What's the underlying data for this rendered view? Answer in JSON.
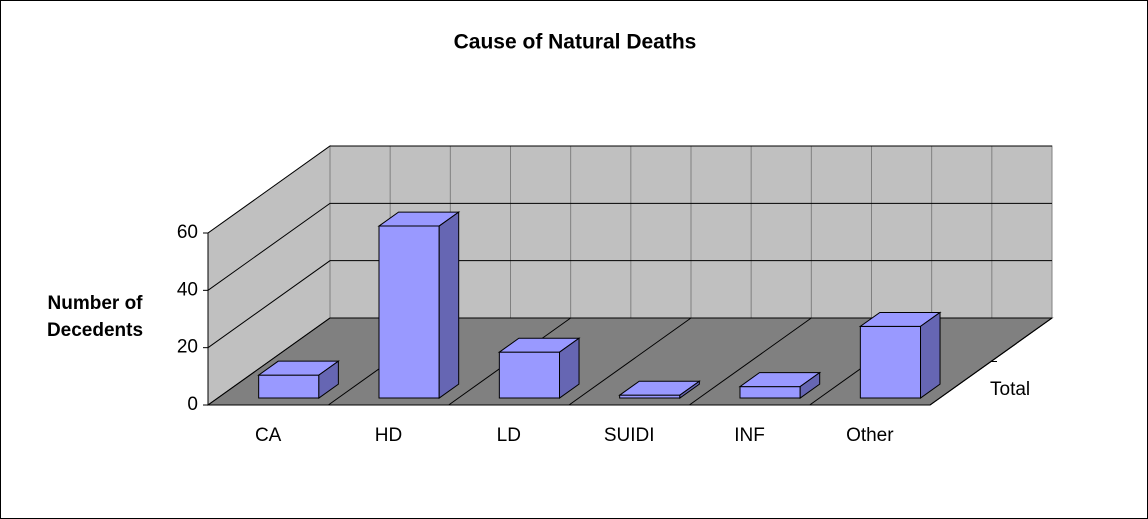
{
  "chart_data": {
    "type": "bar3d",
    "title": "Cause of Natural Deaths",
    "y_label": "Number of Decedents",
    "categories": [
      "CA",
      "HD",
      "LD",
      "SUIDI",
      "INF",
      "Other"
    ],
    "series": [
      {
        "name": "Total",
        "color": "#9999ff",
        "values": [
          8,
          60,
          16,
          1,
          4,
          25
        ]
      }
    ],
    "ylim": [
      0,
      60
    ],
    "yticks": [
      0,
      20,
      40,
      60
    ],
    "grid": true
  }
}
